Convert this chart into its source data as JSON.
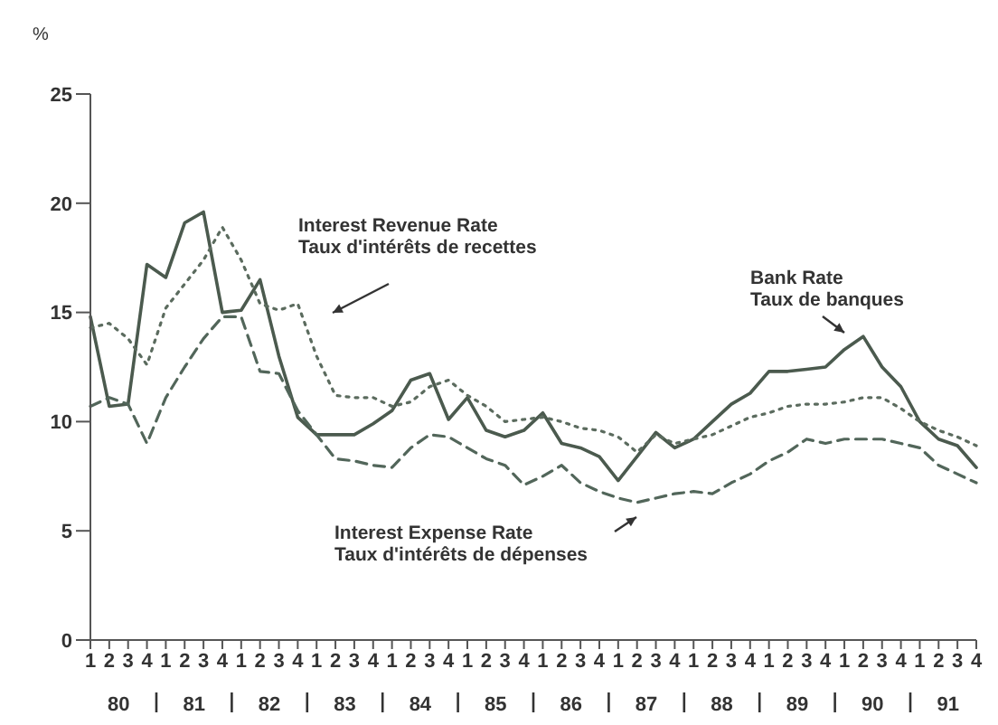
{
  "chart_data": {
    "type": "line",
    "ylabel": "%",
    "categories": [
      "1",
      "2",
      "3",
      "4",
      "1",
      "2",
      "3",
      "4",
      "1",
      "2",
      "3",
      "4",
      "1",
      "2",
      "3",
      "4",
      "1",
      "2",
      "3",
      "4",
      "1",
      "2",
      "3",
      "4",
      "1",
      "2",
      "3",
      "4",
      "1",
      "2",
      "3",
      "4",
      "1",
      "2",
      "3",
      "4",
      "1",
      "2",
      "3",
      "4",
      "1",
      "2",
      "3",
      "4",
      "1",
      "2",
      "3",
      "4"
    ],
    "annotations": [
      "80",
      "81",
      "82",
      "83",
      "84",
      "85",
      "86",
      "87",
      "88",
      "89",
      "90",
      "91"
    ],
    "ylim": [
      0,
      25
    ],
    "yticks": [
      0,
      5,
      10,
      15,
      20,
      25
    ],
    "grid": false,
    "legend": false,
    "marker": "none",
    "series": [
      {
        "name": "Bank Rate\nTaux de banques",
        "color": "#4b5a4e",
        "line_style": "solid",
        "values": [
          14.8,
          10.7,
          10.8,
          17.2,
          16.6,
          19.1,
          19.6,
          15.0,
          15.1,
          16.5,
          13.0,
          10.2,
          9.4,
          9.4,
          9.4,
          9.9,
          10.5,
          11.9,
          12.2,
          10.1,
          11.1,
          9.6,
          9.3,
          9.6,
          10.4,
          9.0,
          8.8,
          8.4,
          7.3,
          8.4,
          9.5,
          8.8,
          9.2,
          10.0,
          10.8,
          11.3,
          12.3,
          12.3,
          12.4,
          12.5,
          13.3,
          13.9,
          12.5,
          11.6,
          10.0,
          9.2,
          8.9,
          7.9
        ]
      },
      {
        "name": "Interest Revenue Rate\nTaux d'intérêts de recettes",
        "color": "#5b6b5e",
        "line_style": "dotted",
        "values": [
          14.3,
          14.5,
          13.8,
          12.6,
          15.2,
          16.3,
          17.4,
          18.9,
          17.4,
          15.4,
          15.1,
          15.4,
          13.0,
          11.2,
          11.1,
          11.1,
          10.7,
          10.9,
          11.6,
          11.9,
          11.2,
          10.7,
          10.0,
          10.1,
          10.2,
          10.0,
          9.7,
          9.6,
          9.3,
          8.6,
          9.4,
          9.0,
          9.2,
          9.4,
          9.8,
          10.2,
          10.4,
          10.7,
          10.8,
          10.8,
          10.9,
          11.1,
          11.1,
          10.6,
          10.0,
          9.6,
          9.3,
          8.9
        ]
      },
      {
        "name": "Interest Expense Rate\nTaux d'intérêts de dépenses",
        "color": "#52665a",
        "line_style": "dashed",
        "values": [
          10.7,
          11.1,
          10.8,
          9.0,
          11.1,
          12.5,
          13.8,
          14.8,
          14.8,
          12.3,
          12.2,
          10.5,
          9.4,
          8.3,
          8.2,
          8.0,
          7.9,
          8.8,
          9.4,
          9.3,
          8.8,
          8.3,
          8.0,
          7.1,
          7.5,
          8.0,
          7.2,
          6.8,
          6.5,
          6.3,
          6.5,
          6.7,
          6.8,
          6.7,
          7.2,
          7.6,
          8.2,
          8.6,
          9.2,
          9.0,
          9.2,
          9.2,
          9.2,
          9.0,
          8.8,
          8.0,
          7.6,
          7.2
        ]
      }
    ]
  }
}
